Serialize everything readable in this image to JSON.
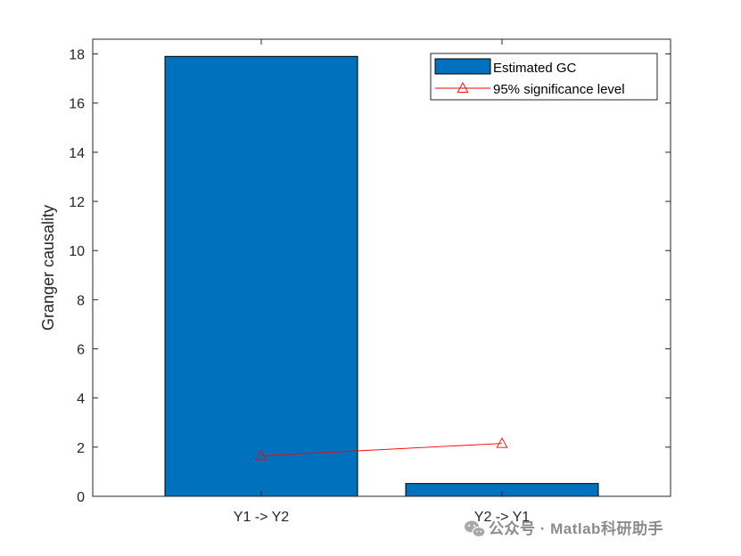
{
  "chart_data": {
    "type": "bar",
    "categories": [
      "Y1 -> Y2",
      "Y2 -> Y1"
    ],
    "series": [
      {
        "name": "Estimated GC",
        "type": "bar",
        "values": [
          17.9,
          0.52
        ],
        "color": "#0072BD"
      },
      {
        "name": "95% significance level",
        "type": "line",
        "marker": "triangle",
        "values": [
          1.65,
          2.15
        ],
        "color": "#FF0000"
      }
    ],
    "xlabel": "",
    "ylabel": "Granger causality",
    "ylim": [
      0,
      18.6
    ],
    "yticks": [
      0,
      2,
      4,
      6,
      8,
      10,
      12,
      14,
      16,
      18
    ],
    "xlim": [
      0.3,
      2.7
    ],
    "grid": false,
    "legend": "top-right",
    "box": true
  },
  "watermark": {
    "text": "公众号 · Matlab科研助手",
    "icon": "wechat-icon"
  }
}
